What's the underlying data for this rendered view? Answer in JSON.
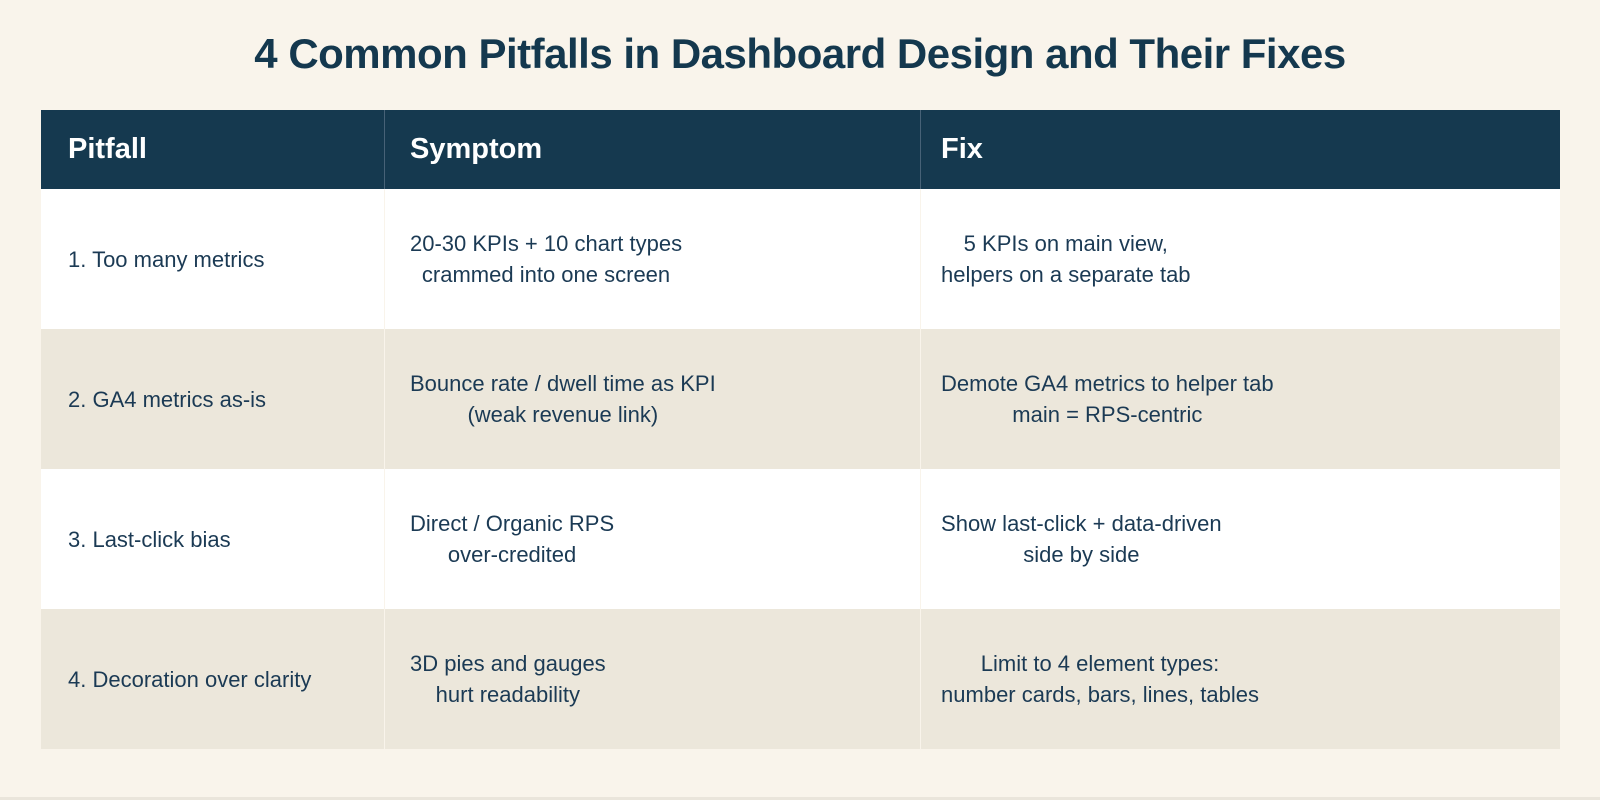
{
  "title": "4 Common Pitfalls in Dashboard Design and Their Fixes",
  "colors": {
    "page_background": "#F9F4EB",
    "header_background": "#15394F",
    "header_text": "#FFFFFF",
    "row_white": "#FFFFFF",
    "row_beige": "#ECE7DB",
    "body_text": "#1B3A54",
    "title_text": "#14384E",
    "header_divider": "#476277",
    "body_divider": "#F9F4EB"
  },
  "chart_data": {
    "type": "table",
    "title": "4 Common Pitfalls in Dashboard Design and Their Fixes",
    "columns": [
      "Pitfall",
      "Symptom",
      "Fix"
    ],
    "rows": [
      [
        "1. Too many metrics",
        "20-30 KPIs + 10 chart types\ncrammed into one screen",
        "5 KPIs on main view,\nhelpers on a separate tab"
      ],
      [
        "2. GA4 metrics as-is",
        "Bounce rate / dwell time as KPI\n(weak revenue link)",
        "Demote GA4 metrics to helper tab\nmain = RPS-centric"
      ],
      [
        "3. Last-click bias",
        "Direct / Organic RPS\nover-credited",
        "Show last-click + data-driven\nside by side"
      ],
      [
        "4. Decoration over clarity",
        "3D pies and gauges\nhurt readability",
        "Limit to 4 element types:\nnumber cards, bars, lines, tables"
      ]
    ],
    "layout": {
      "header_style": "dark-navy, white bold text",
      "alternating_rows": true,
      "row_order_backgrounds": [
        "white",
        "beige",
        "white",
        "beige"
      ],
      "grid": "no horizontal borders, faint vertical column dividers"
    }
  }
}
